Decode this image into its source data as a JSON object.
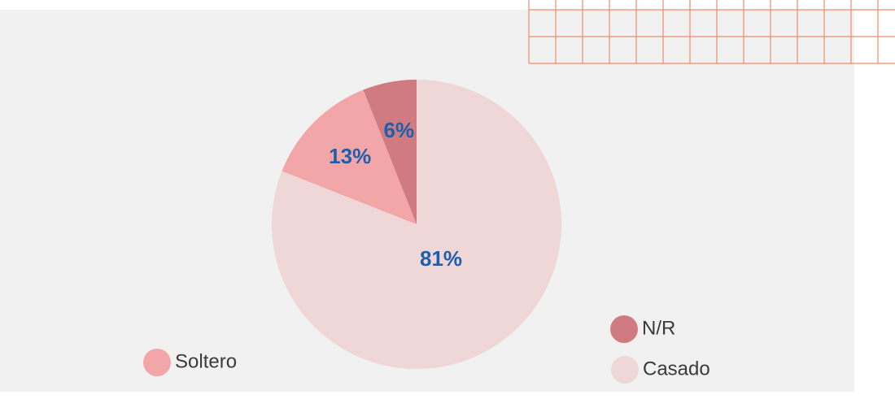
{
  "chart_data": {
    "type": "pie",
    "categories": [
      "Casado",
      "Soltero",
      "N/R"
    ],
    "values": [
      81,
      13,
      6
    ],
    "value_labels": [
      "81%",
      "13%",
      "6%"
    ],
    "colors": [
      "#efd6d7",
      "#f2a6a8",
      "#d07b81"
    ]
  }
}
